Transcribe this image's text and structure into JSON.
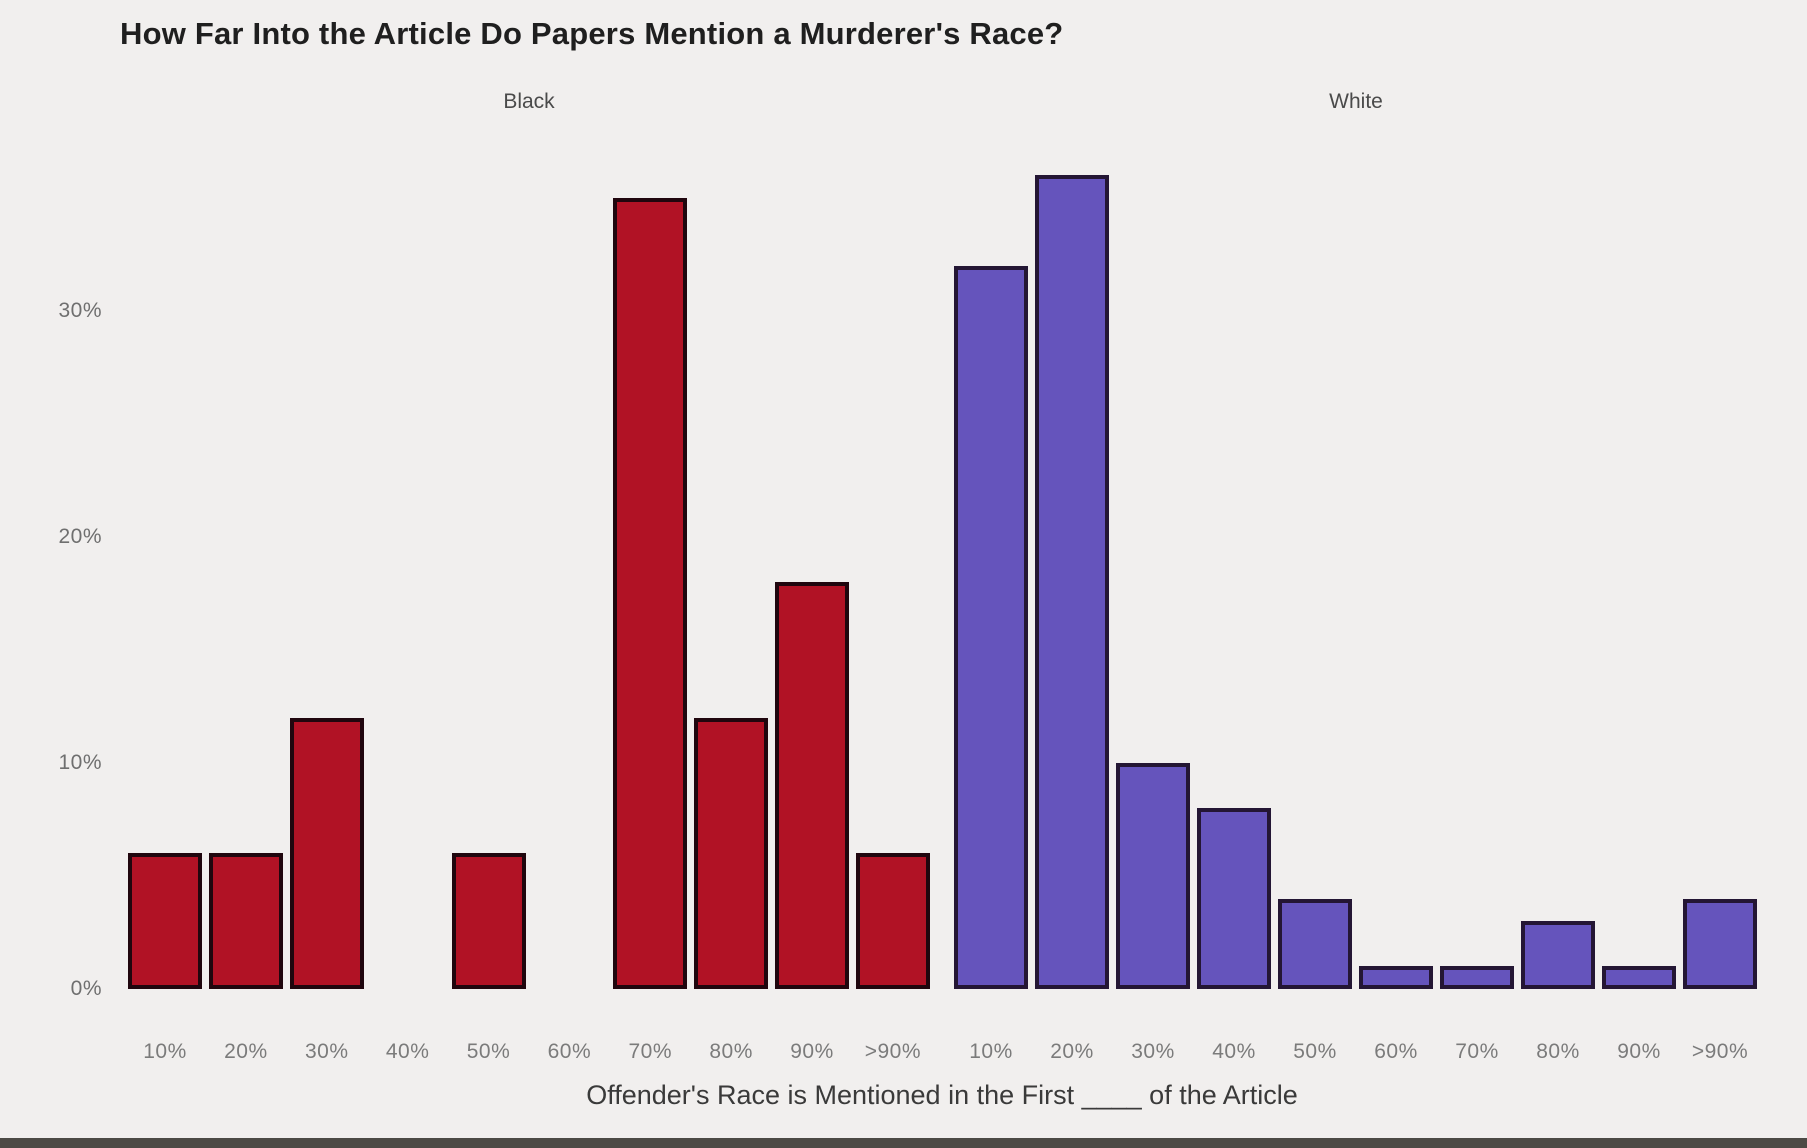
{
  "title": "How Far Into the Article Do Papers Mention a Murderer's Race?",
  "panels": [
    {
      "label": "Black"
    },
    {
      "label": "White"
    }
  ],
  "axis_title": "Offender's Race is Mentioned in the First ____ of the Article",
  "chart_data": {
    "type": "bar",
    "title": "How Far Into the Article Do Papers Mention a Murderer's Race?",
    "subtitle": "Faceted histogram: two panels (Black, White) sharing one y-axis",
    "xlabel": "Offender's Race is Mentioned in the First ____ of the Article",
    "ylabel": "",
    "categories": [
      "10%",
      "20%",
      "30%",
      "40%",
      "50%",
      "60%",
      "70%",
      "80%",
      "90%",
      ">90%"
    ],
    "series": [
      {
        "name": "Black",
        "color": "#b11225",
        "border_color": "#20060e",
        "values": [
          6,
          6,
          12,
          0,
          6,
          0,
          35,
          12,
          18,
          6
        ]
      },
      {
        "name": "White",
        "color": "#6554bc",
        "border_color": "#241634",
        "values": [
          32,
          36,
          10,
          8,
          4,
          1,
          1,
          3,
          1,
          4
        ]
      }
    ],
    "yticks": {
      "labels": [
        "0%",
        "10%",
        "20%",
        "30%"
      ],
      "values": [
        0,
        10,
        20,
        30
      ]
    },
    "ylim": [
      0,
      37.5
    ],
    "grid": false,
    "legend_position": "panel labels above each facet"
  },
  "colors": {
    "background": "#f1efee",
    "black_series_fill": "#b11225",
    "black_series_border": "#20060e",
    "white_series_fill": "#6554bc",
    "white_series_border": "#241634",
    "bottom_bar": "#4c4a45"
  }
}
